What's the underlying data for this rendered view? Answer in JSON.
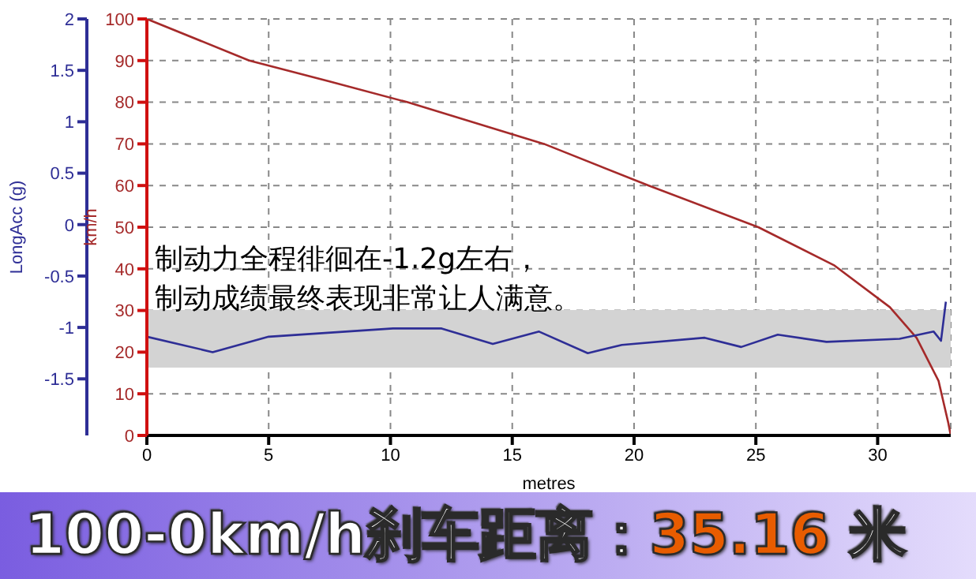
{
  "chart_data": {
    "type": "line",
    "title": "100-0km/h刹车距离：35.16 米",
    "xlabel": "metres",
    "ylabel": "km/h",
    "y2label": "LongAcc (g)",
    "annotations": [
      "制动力全程徘徊在-1.2g左右，",
      "制动成绩最终表现非常让人满意。"
    ],
    "series": [
      {
        "color": "#a52a2a",
        "x": [
          0,
          4.2,
          7.5,
          10.7,
          16.3,
          20.6,
          25.1,
          28.2,
          30.5,
          31.6,
          32.5,
          32.9,
          33
        ],
        "values": [
          100,
          90,
          85,
          80,
          70,
          60,
          50,
          40.9,
          30.8,
          23.4,
          13.1,
          3,
          0
        ]
      },
      {
        "color": "#2e2e96",
        "axis": "y2",
        "x": [
          0,
          2.7,
          5,
          10.1,
          12.1,
          14.2,
          16.1,
          18.1,
          19.5,
          22.9,
          24.4,
          25.9,
          27.9,
          30.9,
          32.3,
          32.6,
          32.8
        ],
        "values": [
          -1.09,
          -1.24,
          -1.09,
          -1.01,
          -1.01,
          -1.16,
          -1.04,
          -1.25,
          -1.17,
          -1.1,
          -1.19,
          -1.07,
          -1.14,
          -1.11,
          -1.04,
          -1.13,
          -0.75
        ]
      }
    ],
    "xlim": [
      0,
      33
    ],
    "xticks": [
      0,
      5,
      10,
      15,
      20,
      25,
      30
    ],
    "ylim": [
      0,
      100
    ],
    "yticks": [
      0,
      10,
      20,
      30,
      40,
      50,
      60,
      70,
      80,
      90,
      100
    ],
    "y2lim": [
      -2.05,
      2
    ],
    "y2ticks": [
      -1.5,
      -1,
      -0.5,
      0,
      0.5,
      1,
      1.5,
      2
    ],
    "bands": [
      {
        "axis": "y2",
        "from": -1.39,
        "to": -0.83,
        "color": "#d3d3d3"
      }
    ],
    "grid": true,
    "line_style": "solid",
    "marker": "none",
    "legend": false
  }
}
